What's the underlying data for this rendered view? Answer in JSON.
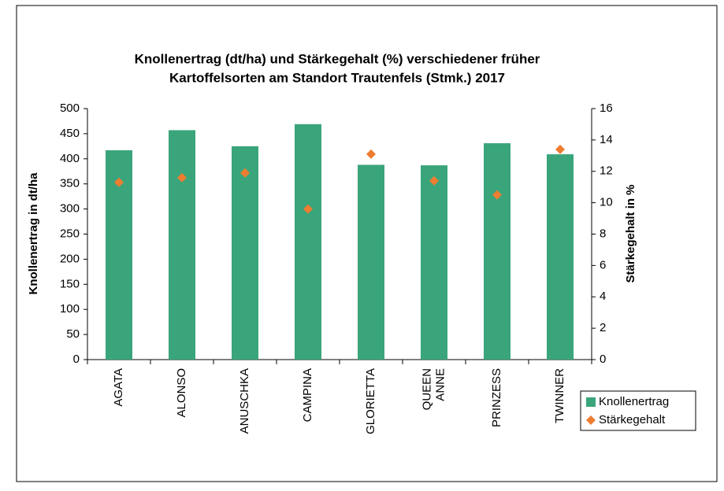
{
  "chart_data": {
    "type": "bar",
    "title": "Knollenertrag (dt/ha) und Stärkegehalt (%) verschiedener früher",
    "subtitle": "Kartoffelsorten am Standort Trautenfels (Stmk.) 2017",
    "y_label": "Knollenertrag in dt/ha",
    "y2_label": "Stärkegehalt in %",
    "categories": [
      "AGATA",
      "ALONSO",
      "ANUSCHKA",
      "CAMPINA",
      "GLORIETTA",
      "QUEEN ANNE",
      "PRINZESS",
      "TWINNER"
    ],
    "series": [
      {
        "name": "Knollenertrag",
        "type": "bar",
        "color": "#3aa57b",
        "values": [
          417,
          457,
          425,
          469,
          388,
          387,
          431,
          409
        ]
      },
      {
        "name": "Stärkegehalt",
        "type": "scatter",
        "axis": "y2",
        "color": "#ed7d31",
        "values": [
          11.3,
          11.6,
          11.9,
          9.6,
          13.1,
          11.4,
          10.5,
          13.4
        ]
      }
    ],
    "ylim": [
      0,
      500
    ],
    "yticks": [
      0,
      50,
      100,
      150,
      200,
      250,
      300,
      350,
      400,
      450,
      500
    ],
    "y2lim": [
      0,
      16
    ],
    "y2ticks": [
      0,
      2,
      4,
      6,
      8,
      10,
      12,
      14,
      16
    ],
    "legend": "right"
  }
}
